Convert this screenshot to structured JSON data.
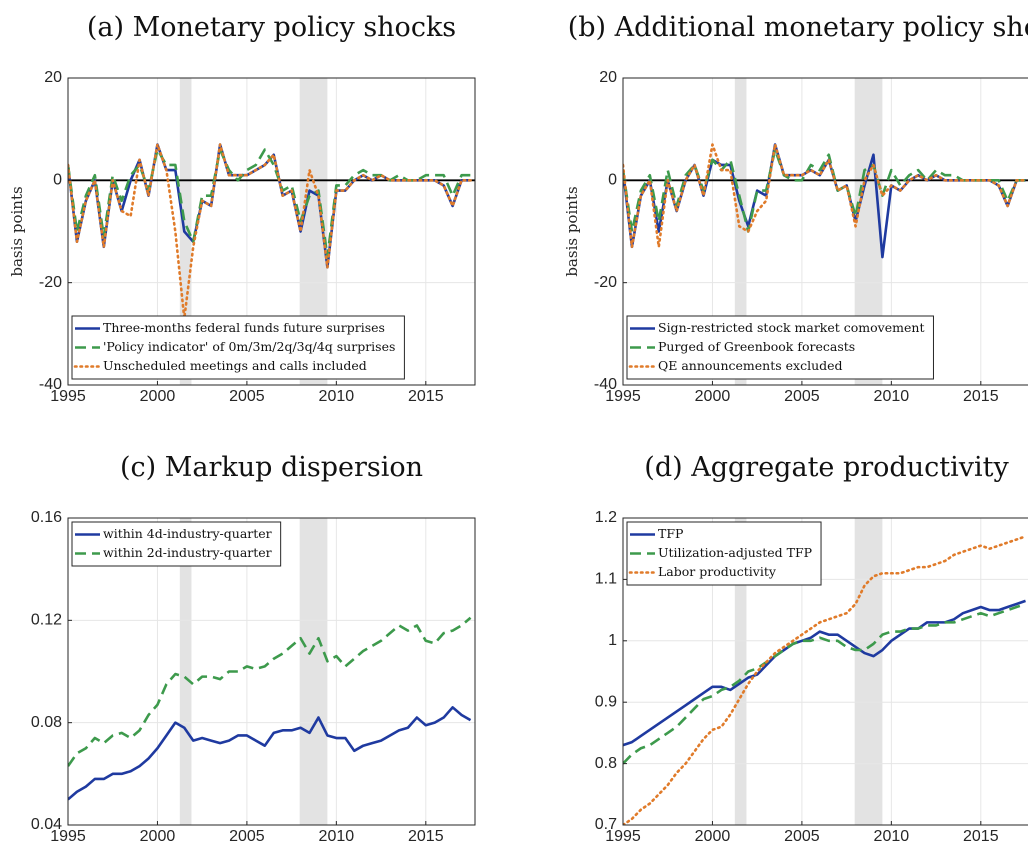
{
  "chart_data": [
    {
      "type": "line",
      "title": "(a) Monetary policy shocks",
      "ylabel": "basis points",
      "x": [
        1995,
        1995.5,
        1996,
        1996.5,
        1997,
        1997.5,
        1998,
        1998.5,
        1999,
        1999.5,
        2000,
        2000.5,
        2001,
        2001.5,
        2002,
        2002.5,
        2003,
        2003.5,
        2004,
        2004.5,
        2005,
        2005.5,
        2006,
        2006.5,
        2007,
        2007.5,
        2008,
        2008.5,
        2009,
        2009.5,
        2010,
        2010.5,
        2011,
        2011.5,
        2012,
        2012.5,
        2013,
        2013.5,
        2014,
        2014.5,
        2015,
        2015.5,
        2016,
        2016.5,
        2017,
        2017.5
      ],
      "xlim": [
        1995,
        2017.75
      ],
      "xticks": [
        1995,
        2000,
        2005,
        2010,
        2015
      ],
      "ylim": [
        -40,
        20
      ],
      "yticks": [
        -40,
        -20,
        0,
        20
      ],
      "grid": true,
      "zero_line": true,
      "legend": "lower left",
      "shaded": [
        [
          2001.25,
          2001.9
        ],
        [
          2007.95,
          2009.5
        ]
      ],
      "series": [
        {
          "name": "Three-months federal funds future surprises",
          "color": "#1f3aa0",
          "style": "solid",
          "values": [
            3,
            -12,
            -4,
            0,
            -13,
            0,
            -6,
            0,
            4,
            -3,
            7,
            2,
            2,
            -10,
            -12,
            -4,
            -5,
            7,
            1,
            1,
            1,
            2,
            3,
            5,
            -3,
            -2,
            -10,
            -2,
            -3,
            -17,
            -2,
            -2,
            0,
            1,
            0,
            1,
            0,
            0,
            0,
            0,
            0,
            0,
            -1,
            -5,
            0,
            0
          ]
        },
        {
          "name": "'Policy indicator' of 0m/3m/2q/3q/4q surprises",
          "color": "#3d9a4c",
          "style": "dashed",
          "values": [
            3,
            -10,
            -3,
            1,
            -11,
            1,
            -4,
            1,
            3,
            -2,
            6,
            3,
            3,
            -8,
            -12,
            -3,
            -3,
            6,
            2,
            0,
            2,
            3,
            6,
            3,
            -2,
            -1,
            -8,
            -3,
            -2,
            -15,
            -1,
            -1,
            1,
            2,
            1,
            1,
            0,
            1,
            0,
            0,
            1,
            1,
            1,
            -3,
            1,
            1
          ]
        },
        {
          "name": "Unscheduled meetings and calls included",
          "color": "#e07b2a",
          "style": "dotted",
          "values": [
            3,
            -12,
            -4,
            0,
            -13,
            0,
            -6,
            -7,
            4,
            -3,
            7,
            2,
            -10,
            -27,
            -13,
            -4,
            -5,
            7,
            1,
            1,
            1,
            2,
            3,
            5,
            -3,
            -2,
            -10,
            2,
            -3,
            -17,
            -2,
            -2,
            0,
            1,
            0,
            1,
            0,
            0,
            0,
            0,
            0,
            0,
            -1,
            -5,
            0,
            0
          ]
        }
      ]
    },
    {
      "type": "line",
      "title": "(b) Additional monetary policy shocks",
      "ylabel": "basis points",
      "x": [
        1995,
        1995.5,
        1996,
        1996.5,
        1997,
        1997.5,
        1998,
        1998.5,
        1999,
        1999.5,
        2000,
        2000.5,
        2001,
        2001.5,
        2002,
        2002.5,
        2003,
        2003.5,
        2004,
        2004.5,
        2005,
        2005.5,
        2006,
        2006.5,
        2007,
        2007.5,
        2008,
        2008.5,
        2009,
        2009.5,
        2010,
        2010.5,
        2011,
        2011.5,
        2012,
        2012.5,
        2013,
        2013.5,
        2014,
        2014.5,
        2015,
        2015.5,
        2016,
        2016.5,
        2017,
        2017.5
      ],
      "xlim": [
        1995,
        2017.75
      ],
      "xticks": [
        1995,
        2000,
        2005,
        2010,
        2015
      ],
      "ylim": [
        -40,
        20
      ],
      "yticks": [
        -40,
        -20,
        0,
        20
      ],
      "grid": true,
      "zero_line": true,
      "legend": "lower left",
      "shaded": [
        [
          2001.25,
          2001.9
        ],
        [
          2007.95,
          2009.5
        ]
      ],
      "series": [
        {
          "name": "Sign-restricted stock market comovement",
          "color": "#1f3aa0",
          "style": "solid",
          "values": [
            2,
            -13,
            -3,
            0,
            -10,
            0,
            -6,
            0,
            3,
            -3,
            4,
            3,
            3,
            -4,
            -9,
            -2,
            -3,
            7,
            1,
            1,
            1,
            2,
            1,
            4,
            -2,
            -1,
            -8,
            -1,
            5,
            -15,
            -1,
            -2,
            0,
            1,
            0,
            1,
            0,
            0,
            0,
            0,
            0,
            0,
            -1,
            -5,
            0,
            0
          ]
        },
        {
          "name": "Purged of Greenbook forecasts",
          "color": "#3d9a4c",
          "style": "dashed",
          "values": [
            2,
            -10,
            -2,
            1,
            -8,
            2,
            -5,
            1,
            3,
            -2,
            4,
            2,
            4,
            -3,
            -10,
            -2,
            -2,
            6,
            1,
            0,
            0,
            3,
            2,
            5,
            -2,
            -1,
            -7,
            2,
            3,
            -3,
            2,
            -1,
            1,
            2,
            0,
            2,
            1,
            1,
            0,
            0,
            0,
            0,
            0,
            -4,
            0,
            0
          ]
        },
        {
          "name": "QE announcements excluded",
          "color": "#e07b2a",
          "style": "dotted",
          "values": [
            3,
            -13,
            -3,
            0,
            -13,
            0,
            -6,
            0,
            3,
            -3,
            7,
            2,
            2,
            -9,
            -10,
            -6,
            -4,
            7,
            1,
            1,
            1,
            2,
            1,
            4,
            -2,
            -1,
            -9,
            0,
            3,
            -3,
            -1,
            -2,
            0,
            1,
            0,
            1,
            0,
            0,
            0,
            0,
            0,
            0,
            -1,
            -5,
            0,
            0
          ]
        }
      ]
    },
    {
      "type": "line",
      "title": "(c) Markup dispersion",
      "x": [
        1995,
        1995.5,
        1996,
        1996.5,
        1997,
        1997.5,
        1998,
        1998.5,
        1999,
        1999.5,
        2000,
        2000.5,
        2001,
        2001.5,
        2002,
        2002.5,
        2003,
        2003.5,
        2004,
        2004.5,
        2005,
        2005.5,
        2006,
        2006.5,
        2007,
        2007.5,
        2008,
        2008.5,
        2009,
        2009.5,
        2010,
        2010.5,
        2011,
        2011.5,
        2012,
        2012.5,
        2013,
        2013.5,
        2014,
        2014.5,
        2015,
        2015.5,
        2016,
        2016.5,
        2017,
        2017.5
      ],
      "xlim": [
        1995,
        2017.75
      ],
      "xticks": [
        1995,
        2000,
        2005,
        2010,
        2015
      ],
      "ylim": [
        0.04,
        0.16
      ],
      "yticks": [
        0.04,
        0.08,
        0.12,
        0.16
      ],
      "grid": true,
      "zero_line": false,
      "legend": "upper left",
      "shaded": [
        [
          2001.25,
          2001.9
        ],
        [
          2007.95,
          2009.5
        ]
      ],
      "series": [
        {
          "name": "within 4d-industry-quarter",
          "color": "#1f3aa0",
          "style": "solid",
          "values": [
            0.05,
            0.053,
            0.055,
            0.058,
            0.058,
            0.06,
            0.06,
            0.061,
            0.063,
            0.066,
            0.07,
            0.075,
            0.08,
            0.078,
            0.073,
            0.074,
            0.073,
            0.072,
            0.073,
            0.075,
            0.075,
            0.073,
            0.071,
            0.076,
            0.077,
            0.077,
            0.078,
            0.076,
            0.082,
            0.075,
            0.074,
            0.074,
            0.069,
            0.071,
            0.072,
            0.073,
            0.075,
            0.077,
            0.078,
            0.082,
            0.079,
            0.08,
            0.082,
            0.086,
            0.083,
            0.081
          ]
        },
        {
          "name": "within 2d-industry-quarter",
          "color": "#3d9a4c",
          "style": "dashed",
          "values": [
            0.063,
            0.068,
            0.07,
            0.074,
            0.072,
            0.075,
            0.076,
            0.074,
            0.077,
            0.083,
            0.087,
            0.095,
            0.099,
            0.098,
            0.095,
            0.098,
            0.098,
            0.097,
            0.1,
            0.1,
            0.102,
            0.101,
            0.102,
            0.105,
            0.107,
            0.11,
            0.113,
            0.107,
            0.113,
            0.104,
            0.106,
            0.102,
            0.105,
            0.108,
            0.11,
            0.112,
            0.115,
            0.118,
            0.116,
            0.118,
            0.112,
            0.111,
            0.115,
            0.116,
            0.118,
            0.121
          ]
        }
      ]
    },
    {
      "type": "line",
      "title": "(d) Aggregate productivity",
      "x": [
        1995,
        1995.5,
        1996,
        1996.5,
        1997,
        1997.5,
        1998,
        1998.5,
        1999,
        1999.5,
        2000,
        2000.5,
        2001,
        2001.5,
        2002,
        2002.5,
        2003,
        2003.5,
        2004,
        2004.5,
        2005,
        2005.5,
        2006,
        2006.5,
        2007,
        2007.5,
        2008,
        2008.5,
        2009,
        2009.5,
        2010,
        2010.5,
        2011,
        2011.5,
        2012,
        2012.5,
        2013,
        2013.5,
        2014,
        2014.5,
        2015,
        2015.5,
        2016,
        2016.5,
        2017,
        2017.5
      ],
      "xlim": [
        1995,
        2017.75
      ],
      "xticks": [
        1995,
        2000,
        2005,
        2010,
        2015
      ],
      "ylim": [
        0.7,
        1.2
      ],
      "yticks": [
        0.7,
        0.8,
        0.9,
        1,
        1.1,
        1.2
      ],
      "grid": true,
      "zero_line": false,
      "legend": "upper left",
      "shaded": [
        [
          2001.25,
          2001.9
        ],
        [
          2007.95,
          2009.5
        ]
      ],
      "series": [
        {
          "name": "TFP",
          "color": "#1f3aa0",
          "style": "solid",
          "values": [
            0.83,
            0.835,
            0.845,
            0.855,
            0.865,
            0.875,
            0.885,
            0.895,
            0.905,
            0.915,
            0.925,
            0.925,
            0.92,
            0.93,
            0.94,
            0.945,
            0.96,
            0.975,
            0.985,
            0.995,
            1.0,
            1.005,
            1.015,
            1.01,
            1.01,
            1.0,
            0.99,
            0.98,
            0.975,
            0.985,
            1.0,
            1.01,
            1.02,
            1.02,
            1.03,
            1.03,
            1.03,
            1.035,
            1.045,
            1.05,
            1.055,
            1.05,
            1.05,
            1.055,
            1.06,
            1.065
          ]
        },
        {
          "name": "Utilization-adjusted TFP",
          "color": "#3d9a4c",
          "style": "dashed",
          "values": [
            0.8,
            0.815,
            0.825,
            0.83,
            0.84,
            0.85,
            0.86,
            0.875,
            0.89,
            0.905,
            0.91,
            0.92,
            0.925,
            0.935,
            0.95,
            0.955,
            0.965,
            0.975,
            0.985,
            0.995,
            1.0,
            1.0,
            1.005,
            1.0,
            1.0,
            0.99,
            0.985,
            0.985,
            0.995,
            1.01,
            1.015,
            1.015,
            1.02,
            1.02,
            1.025,
            1.025,
            1.03,
            1.03,
            1.035,
            1.04,
            1.045,
            1.04,
            1.045,
            1.05,
            1.055,
            1.06
          ]
        },
        {
          "name": "Labor productivity",
          "color": "#e07b2a",
          "style": "dotted",
          "values": [
            0.7,
            0.71,
            0.725,
            0.735,
            0.75,
            0.765,
            0.785,
            0.8,
            0.82,
            0.84,
            0.855,
            0.86,
            0.88,
            0.905,
            0.93,
            0.95,
            0.965,
            0.98,
            0.99,
            1.0,
            1.01,
            1.02,
            1.03,
            1.035,
            1.04,
            1.045,
            1.06,
            1.09,
            1.105,
            1.11,
            1.11,
            1.11,
            1.115,
            1.12,
            1.12,
            1.125,
            1.13,
            1.14,
            1.145,
            1.15,
            1.155,
            1.15,
            1.155,
            1.16,
            1.165,
            1.17
          ]
        }
      ]
    }
  ]
}
